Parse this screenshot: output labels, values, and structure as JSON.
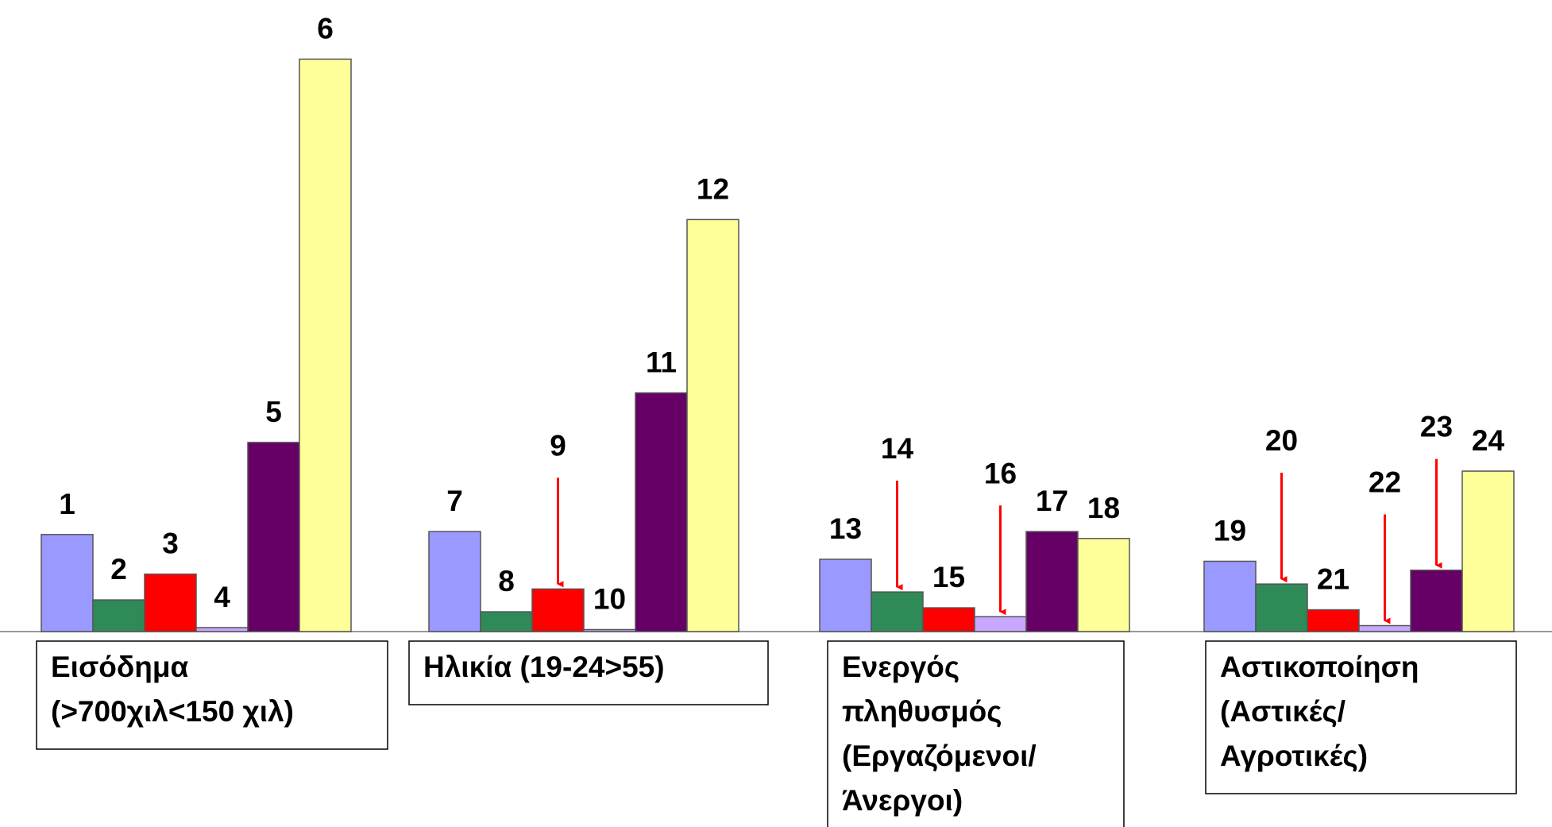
{
  "chart_data": {
    "type": "bar",
    "categories": [
      [
        "Εισόδημα",
        "(>700χιλ<150 χιλ)"
      ],
      [
        "Ηλικία (19-24>55)"
      ],
      [
        "Ενεργός",
        "πληθυσμός",
        "(Εργαζόμενοι/",
        "Άνεργοι)"
      ],
      [
        "Αστικοποίηση",
        "(Αστικές/",
        "Αγροτικές)"
      ]
    ],
    "ylim": [
      0,
      600
    ],
    "series": [
      {
        "color": "#9999ff",
        "values": [
          98,
          101,
          73,
          71
        ],
        "labels": [
          "1",
          "7",
          "13",
          "19"
        ]
      },
      {
        "color": "#2e8b57",
        "values": [
          32,
          20,
          40,
          48
        ],
        "labels": [
          "2",
          "8",
          "14",
          "20"
        ]
      },
      {
        "color": "#ff0000",
        "values": [
          58,
          43,
          24,
          22
        ],
        "labels": [
          "3",
          "9",
          "15",
          "21"
        ]
      },
      {
        "color": "#c8a8ff",
        "values": [
          4,
          2,
          15,
          6
        ],
        "labels": [
          "4",
          "10",
          "16",
          "22"
        ]
      },
      {
        "color": "#660066",
        "values": [
          191,
          241,
          101,
          62
        ],
        "labels": [
          "5",
          "11",
          "17",
          "23"
        ]
      },
      {
        "color": "#ffff99",
        "values": [
          578,
          416,
          94,
          162
        ],
        "labels": [
          "6",
          "12",
          "18",
          "24"
        ]
      }
    ]
  }
}
